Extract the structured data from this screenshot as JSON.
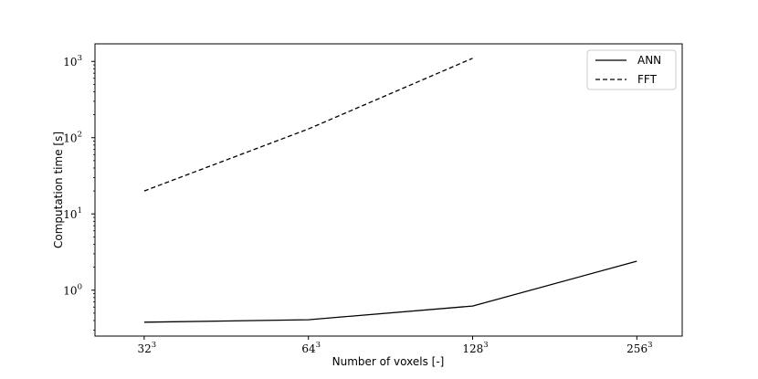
{
  "chart_data": {
    "type": "line",
    "title": "",
    "xlabel": "Number of voxels [-]",
    "ylabel": "Computation time [s]",
    "x_scale": "log",
    "y_scale": "log",
    "xlim": [
      26,
      310
    ],
    "ylim": [
      0.25,
      1700
    ],
    "x": [
      32,
      64,
      128,
      256
    ],
    "x_tick_labels": [
      {
        "base": "32",
        "exp": "3"
      },
      {
        "base": "64",
        "exp": "3"
      },
      {
        "base": "128",
        "exp": "3"
      },
      {
        "base": "256",
        "exp": "3"
      }
    ],
    "y_ticks": [
      1,
      10,
      100,
      1000
    ],
    "y_tick_labels": [
      {
        "base": "10",
        "exp": "0"
      },
      {
        "base": "10",
        "exp": "1"
      },
      {
        "base": "10",
        "exp": "2"
      },
      {
        "base": "10",
        "exp": "3"
      }
    ],
    "series": [
      {
        "name": "ANN",
        "style": "solid",
        "color": "#000000",
        "values": [
          0.38,
          0.41,
          0.62,
          2.4
        ]
      },
      {
        "name": "FFT",
        "style": "dashed",
        "color": "#000000",
        "values": [
          20,
          130,
          1100,
          null
        ]
      }
    ],
    "grid": false,
    "legend_position": "top-right"
  }
}
